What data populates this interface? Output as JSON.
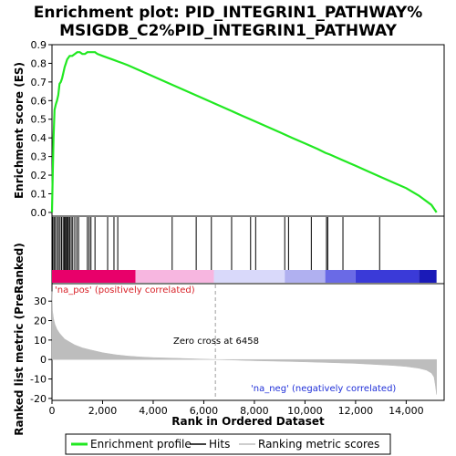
{
  "title_line1": "Enrichment plot: PID_INTEGRIN1_PATHWAY%",
  "title_line2": "MSIGDB_C2%PID_INTEGRIN1_PATHWAY",
  "colors": {
    "profile": "#21e821",
    "hits": "#000000",
    "metric": "#bdbdbd",
    "zero_line": "#9e9e9e",
    "pos_text": "#d81f26",
    "neg_text": "#1f2fd8"
  },
  "chart_data": [
    {
      "type": "line",
      "name": "enrichment-profile-panel",
      "ylabel": "Enrichment score (ES)",
      "xlim": [
        0,
        15500
      ],
      "ylim": [
        -0.02,
        0.9
      ],
      "yticks": [
        0.0,
        0.1,
        0.2,
        0.3,
        0.4,
        0.5,
        0.6,
        0.7,
        0.8,
        0.9
      ],
      "ytick_labels": [
        "0.0",
        "0.1",
        "0.2",
        "0.3",
        "0.4",
        "0.5",
        "0.6",
        "0.7",
        "0.8",
        "0.9"
      ],
      "series": [
        {
          "name": "Enrichment profile",
          "x": [
            0,
            30,
            60,
            100,
            150,
            200,
            250,
            300,
            350,
            400,
            450,
            500,
            550,
            600,
            650,
            700,
            750,
            800,
            900,
            1000,
            1100,
            1200,
            1300,
            1400,
            1500,
            1600,
            1700,
            1800,
            2000,
            2200,
            2400,
            2600,
            2800,
            3000,
            3500,
            4000,
            4500,
            5000,
            5500,
            6000,
            6500,
            7000,
            7500,
            8000,
            8500,
            9000,
            9500,
            10000,
            10500,
            10800,
            11000,
            11500,
            12000,
            12500,
            13000,
            13500,
            14000,
            14500,
            15000,
            15200
          ],
          "y": [
            0.0,
            0.2,
            0.4,
            0.55,
            0.58,
            0.6,
            0.63,
            0.69,
            0.7,
            0.72,
            0.75,
            0.78,
            0.8,
            0.82,
            0.83,
            0.84,
            0.84,
            0.84,
            0.85,
            0.86,
            0.86,
            0.85,
            0.85,
            0.86,
            0.86,
            0.86,
            0.86,
            0.85,
            0.84,
            0.83,
            0.82,
            0.81,
            0.8,
            0.79,
            0.76,
            0.73,
            0.7,
            0.67,
            0.64,
            0.61,
            0.58,
            0.55,
            0.52,
            0.49,
            0.46,
            0.43,
            0.4,
            0.37,
            0.34,
            0.32,
            0.31,
            0.28,
            0.25,
            0.22,
            0.19,
            0.16,
            0.13,
            0.09,
            0.04,
            0.0
          ]
        }
      ]
    },
    {
      "type": "hits",
      "name": "hits-panel",
      "xlim": [
        0,
        15500
      ],
      "hit_positions": [
        30,
        80,
        130,
        200,
        260,
        320,
        380,
        440,
        490,
        530,
        570,
        610,
        650,
        700,
        760,
        820,
        900,
        980,
        1050,
        1400,
        1470,
        1540,
        1700,
        2200,
        2450,
        2600,
        4750,
        5700,
        6300,
        7100,
        7850,
        8050,
        9200,
        9350,
        10250,
        10850,
        10900,
        11500,
        12950
      ],
      "color_bands": [
        {
          "from": 0,
          "to": 3300,
          "color": "#e8006a"
        },
        {
          "from": 3300,
          "to": 6400,
          "color": "#f7b6e0"
        },
        {
          "from": 6400,
          "to": 9200,
          "color": "#d9d9fa"
        },
        {
          "from": 9200,
          "to": 10800,
          "color": "#b0b0f0"
        },
        {
          "from": 10800,
          "to": 12000,
          "color": "#6a6ae6"
        },
        {
          "from": 12000,
          "to": 14500,
          "color": "#3a3ad8"
        },
        {
          "from": 14500,
          "to": 15200,
          "color": "#1a1ab8"
        }
      ]
    },
    {
      "type": "area",
      "name": "ranked-metric-panel",
      "ylabel": "Ranked list metric (PreRanked)",
      "xlabel": "Rank in Ordered Dataset",
      "xlim": [
        0,
        15500
      ],
      "ylim": [
        -21,
        39
      ],
      "xticks": [
        0,
        2000,
        4000,
        6000,
        8000,
        10000,
        12000,
        14000
      ],
      "xtick_labels": [
        "0",
        "2,000",
        "4,000",
        "6,000",
        "8,000",
        "10,000",
        "12,000",
        "14,000"
      ],
      "yticks": [
        -20,
        -10,
        0,
        10,
        20,
        30
      ],
      "ytick_labels": [
        "-20",
        "-10",
        "0",
        "10",
        "20",
        "30"
      ],
      "series": [
        {
          "name": "Ranking metric scores",
          "x": [
            0,
            20,
            60,
            120,
            200,
            300,
            400,
            500,
            700,
            900,
            1200,
            1500,
            2000,
            2500,
            3000,
            3500,
            4000,
            5000,
            6000,
            6458,
            7000,
            8000,
            9000,
            10000,
            11000,
            12000,
            13000,
            13500,
            14000,
            14500,
            14800,
            15000,
            15100,
            15150,
            15200
          ],
          "y": [
            35,
            25,
            21,
            18,
            15.5,
            13.5,
            12,
            10.5,
            9,
            7.5,
            6,
            5,
            3.5,
            2.5,
            1.8,
            1.3,
            1.0,
            0.6,
            0.2,
            0.0,
            -0.2,
            -0.6,
            -0.9,
            -1.2,
            -1.6,
            -2.0,
            -2.7,
            -3.1,
            -3.6,
            -4.5,
            -5.5,
            -7.0,
            -9.0,
            -13.0,
            -18.0
          ]
        }
      ],
      "zero_cross": 6458,
      "annotations": {
        "pos_label": "'na_pos' (positively correlated)",
        "neg_label": "'na_neg' (negatively correlated)",
        "zero_cross_label": "Zero cross at 6458"
      }
    }
  ],
  "legend": {
    "items": [
      {
        "label": "Enrichment profile",
        "color": "#21e821"
      },
      {
        "label": "Hits",
        "color": "#000000"
      },
      {
        "label": "Ranking metric scores",
        "color": "#bdbdbd"
      }
    ]
  }
}
